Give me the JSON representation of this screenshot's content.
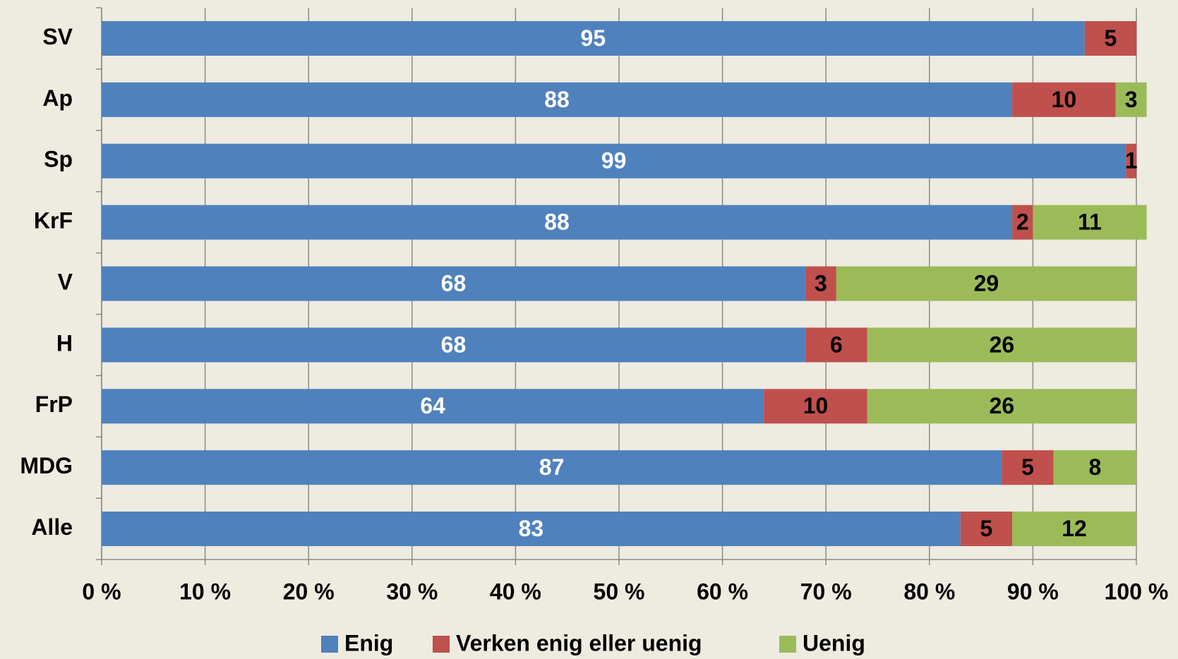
{
  "chart_data": {
    "type": "stacked-barh",
    "categories": [
      "SV",
      "Ap",
      "Sp",
      "KrF",
      "V",
      "H",
      "FrP",
      "MDG",
      "Alle"
    ],
    "series": [
      {
        "name": "Enig",
        "color": "#4f81bd",
        "values": [
          95,
          88,
          99,
          88,
          68,
          68,
          64,
          87,
          83
        ]
      },
      {
        "name": "Verken enig eller uenig",
        "color": "#c0504d",
        "values": [
          5,
          10,
          1,
          2,
          3,
          6,
          10,
          5,
          5
        ]
      },
      {
        "name": "Uenig",
        "color": "#9bbb59",
        "values": [
          null,
          3,
          null,
          11,
          29,
          26,
          26,
          8,
          12
        ]
      }
    ],
    "xlim": [
      0,
      100
    ],
    "xticks": [
      {
        "value": 0,
        "label": "0 %"
      },
      {
        "value": 10,
        "label": "10 %"
      },
      {
        "value": 20,
        "label": "20 %"
      },
      {
        "value": 30,
        "label": "30 %"
      },
      {
        "value": 40,
        "label": "40 %"
      },
      {
        "value": 50,
        "label": "50 %"
      },
      {
        "value": 60,
        "label": "60 %"
      },
      {
        "value": 70,
        "label": "70 %"
      },
      {
        "value": 80,
        "label": "80 %"
      },
      {
        "value": 90,
        "label": "90 %"
      },
      {
        "value": 100,
        "label": "100 %"
      }
    ],
    "grid": true,
    "legend": "bottom"
  }
}
